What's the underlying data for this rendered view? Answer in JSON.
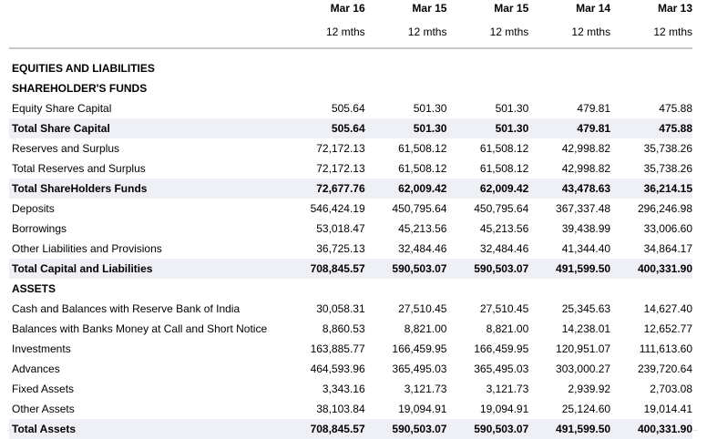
{
  "columns": [
    {
      "period": "Mar 16",
      "months": "12 mths"
    },
    {
      "period": "Mar 15",
      "months": "12 mths"
    },
    {
      "period": "Mar 15",
      "months": "12 mths"
    },
    {
      "period": "Mar 14",
      "months": "12 mths"
    },
    {
      "period": "Mar 13",
      "months": "12 mths"
    }
  ],
  "rows": [
    {
      "label": "EQUITIES AND LIABILITIES",
      "kind": "section",
      "values": [
        "",
        "",
        "",
        "",
        ""
      ]
    },
    {
      "label": "SHAREHOLDER'S FUNDS",
      "kind": "section",
      "values": [
        "",
        "",
        "",
        "",
        ""
      ]
    },
    {
      "label": "Equity Share Capital",
      "kind": "row",
      "values": [
        "505.64",
        "501.30",
        "501.30",
        "479.81",
        "475.88"
      ]
    },
    {
      "label": "Total Share Capital",
      "kind": "total",
      "values": [
        "505.64",
        "501.30",
        "501.30",
        "479.81",
        "475.88"
      ]
    },
    {
      "label": "Reserves and Surplus",
      "kind": "row",
      "values": [
        "72,172.13",
        "61,508.12",
        "61,508.12",
        "42,998.82",
        "35,738.26"
      ]
    },
    {
      "label": "Total Reserves and Surplus",
      "kind": "row",
      "values": [
        "72,172.13",
        "61,508.12",
        "61,508.12",
        "42,998.82",
        "35,738.26"
      ]
    },
    {
      "label": "Total ShareHolders Funds",
      "kind": "total",
      "values": [
        "72,677.76",
        "62,009.42",
        "62,009.42",
        "43,478.63",
        "36,214.15"
      ]
    },
    {
      "label": "Deposits",
      "kind": "row",
      "values": [
        "546,424.19",
        "450,795.64",
        "450,795.64",
        "367,337.48",
        "296,246.98"
      ]
    },
    {
      "label": "Borrowings",
      "kind": "row",
      "values": [
        "53,018.47",
        "45,213.56",
        "45,213.56",
        "39,438.99",
        "33,006.60"
      ]
    },
    {
      "label": "Other Liabilities and Provisions",
      "kind": "row",
      "values": [
        "36,725.13",
        "32,484.46",
        "32,484.46",
        "41,344.40",
        "34,864.17"
      ]
    },
    {
      "label": "Total Capital and Liabilities",
      "kind": "total",
      "values": [
        "708,845.57",
        "590,503.07",
        "590,503.07",
        "491,599.50",
        "400,331.90"
      ]
    },
    {
      "label": "ASSETS",
      "kind": "section",
      "values": [
        "",
        "",
        "",
        "",
        ""
      ]
    },
    {
      "label": "Cash and Balances with Reserve Bank of India",
      "kind": "row",
      "values": [
        "30,058.31",
        "27,510.45",
        "27,510.45",
        "25,345.63",
        "14,627.40"
      ]
    },
    {
      "label": "Balances with Banks Money at Call and Short Notice",
      "kind": "row",
      "values": [
        "8,860.53",
        "8,821.00",
        "8,821.00",
        "14,238.01",
        "12,652.77"
      ]
    },
    {
      "label": "Investments",
      "kind": "row",
      "values": [
        "163,885.77",
        "166,459.95",
        "166,459.95",
        "120,951.07",
        "111,613.60"
      ]
    },
    {
      "label": "Advances",
      "kind": "row",
      "values": [
        "464,593.96",
        "365,495.03",
        "365,495.03",
        "303,000.27",
        "239,720.64"
      ]
    },
    {
      "label": "Fixed Assets",
      "kind": "row",
      "values": [
        "3,343.16",
        "3,121.73",
        "3,121.73",
        "2,939.92",
        "2,703.08"
      ]
    },
    {
      "label": "Other Assets",
      "kind": "row",
      "values": [
        "38,103.84",
        "19,094.91",
        "19,094.91",
        "25,124.60",
        "19,014.41"
      ]
    },
    {
      "label": "Total Assets",
      "kind": "total",
      "values": [
        "708,845.57",
        "590,503.07",
        "590,503.07",
        "491,599.50",
        "400,331.90"
      ]
    }
  ]
}
